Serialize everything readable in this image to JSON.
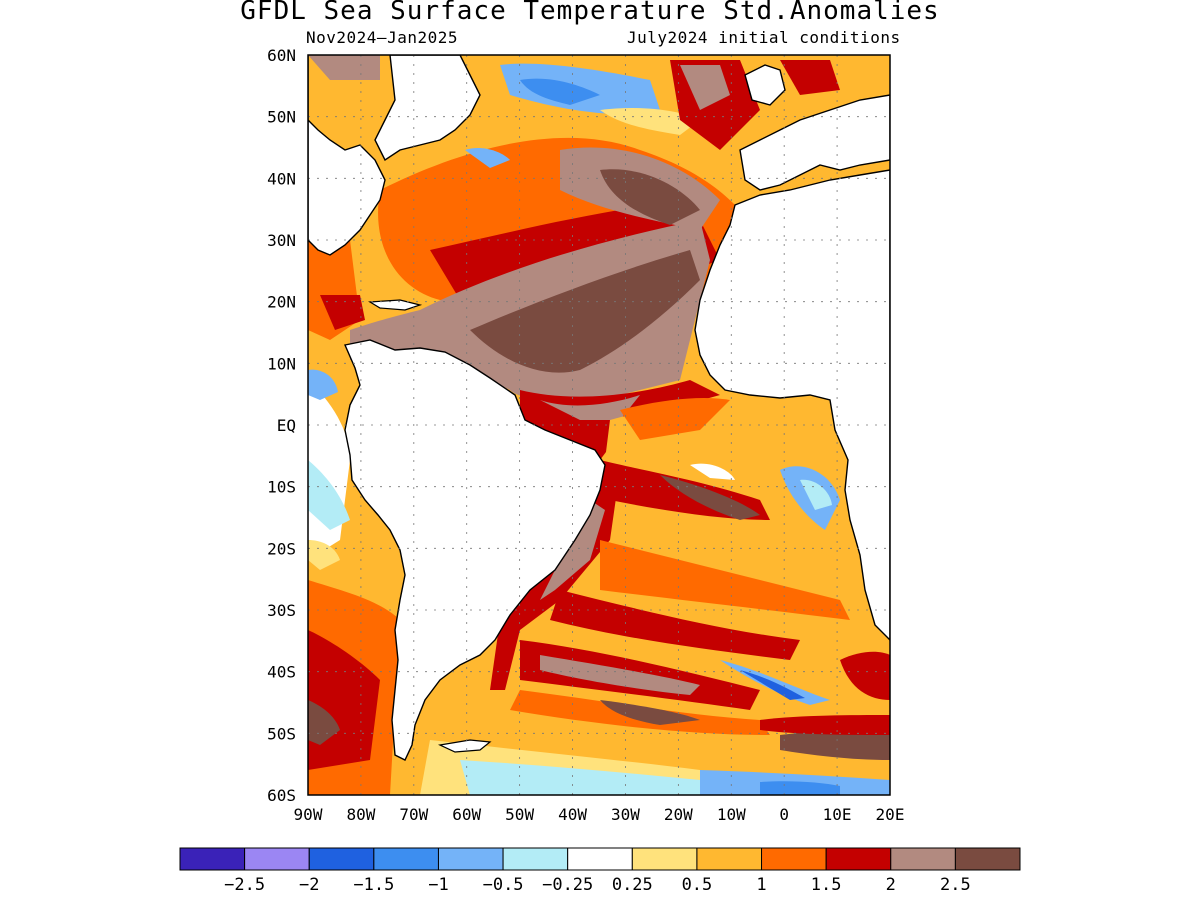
{
  "title": "GFDL Sea Surface Temperature Std.Anomalies",
  "period": "Nov2024–Jan2025",
  "init": "July2024 initial conditions",
  "lat_labels": [
    "60N",
    "50N",
    "40N",
    "30N",
    "20N",
    "10N",
    "EQ",
    "10S",
    "20S",
    "30S",
    "40S",
    "50S",
    "60S"
  ],
  "lon_labels": [
    "90W",
    "80W",
    "70W",
    "60W",
    "50W",
    "40W",
    "30W",
    "20W",
    "10W",
    "0",
    "10E",
    "20E"
  ],
  "map": {
    "lon_range": [
      -90,
      20
    ],
    "lat_range": [
      -60,
      60
    ],
    "grid": "dotted",
    "projection": "lat-lon"
  },
  "colorbar": {
    "colors": [
      "#3a22b8",
      "#9b86f3",
      "#1f61e0",
      "#3d8ef0",
      "#74b3f8",
      "#b3ecf6",
      "#ffffff",
      "#ffe27c",
      "#ffb830",
      "#ff6a00",
      "#c40000",
      "#b28a80",
      "#7a4b40"
    ],
    "labels": [
      "−2.5",
      "−2",
      "−1.5",
      "−1",
      "−0.5",
      "−0.25",
      "0.25",
      "0.5",
      "1",
      "1.5",
      "2",
      "2.5"
    ]
  },
  "land_color": "#ffffff",
  "coast_color": "#000000"
}
